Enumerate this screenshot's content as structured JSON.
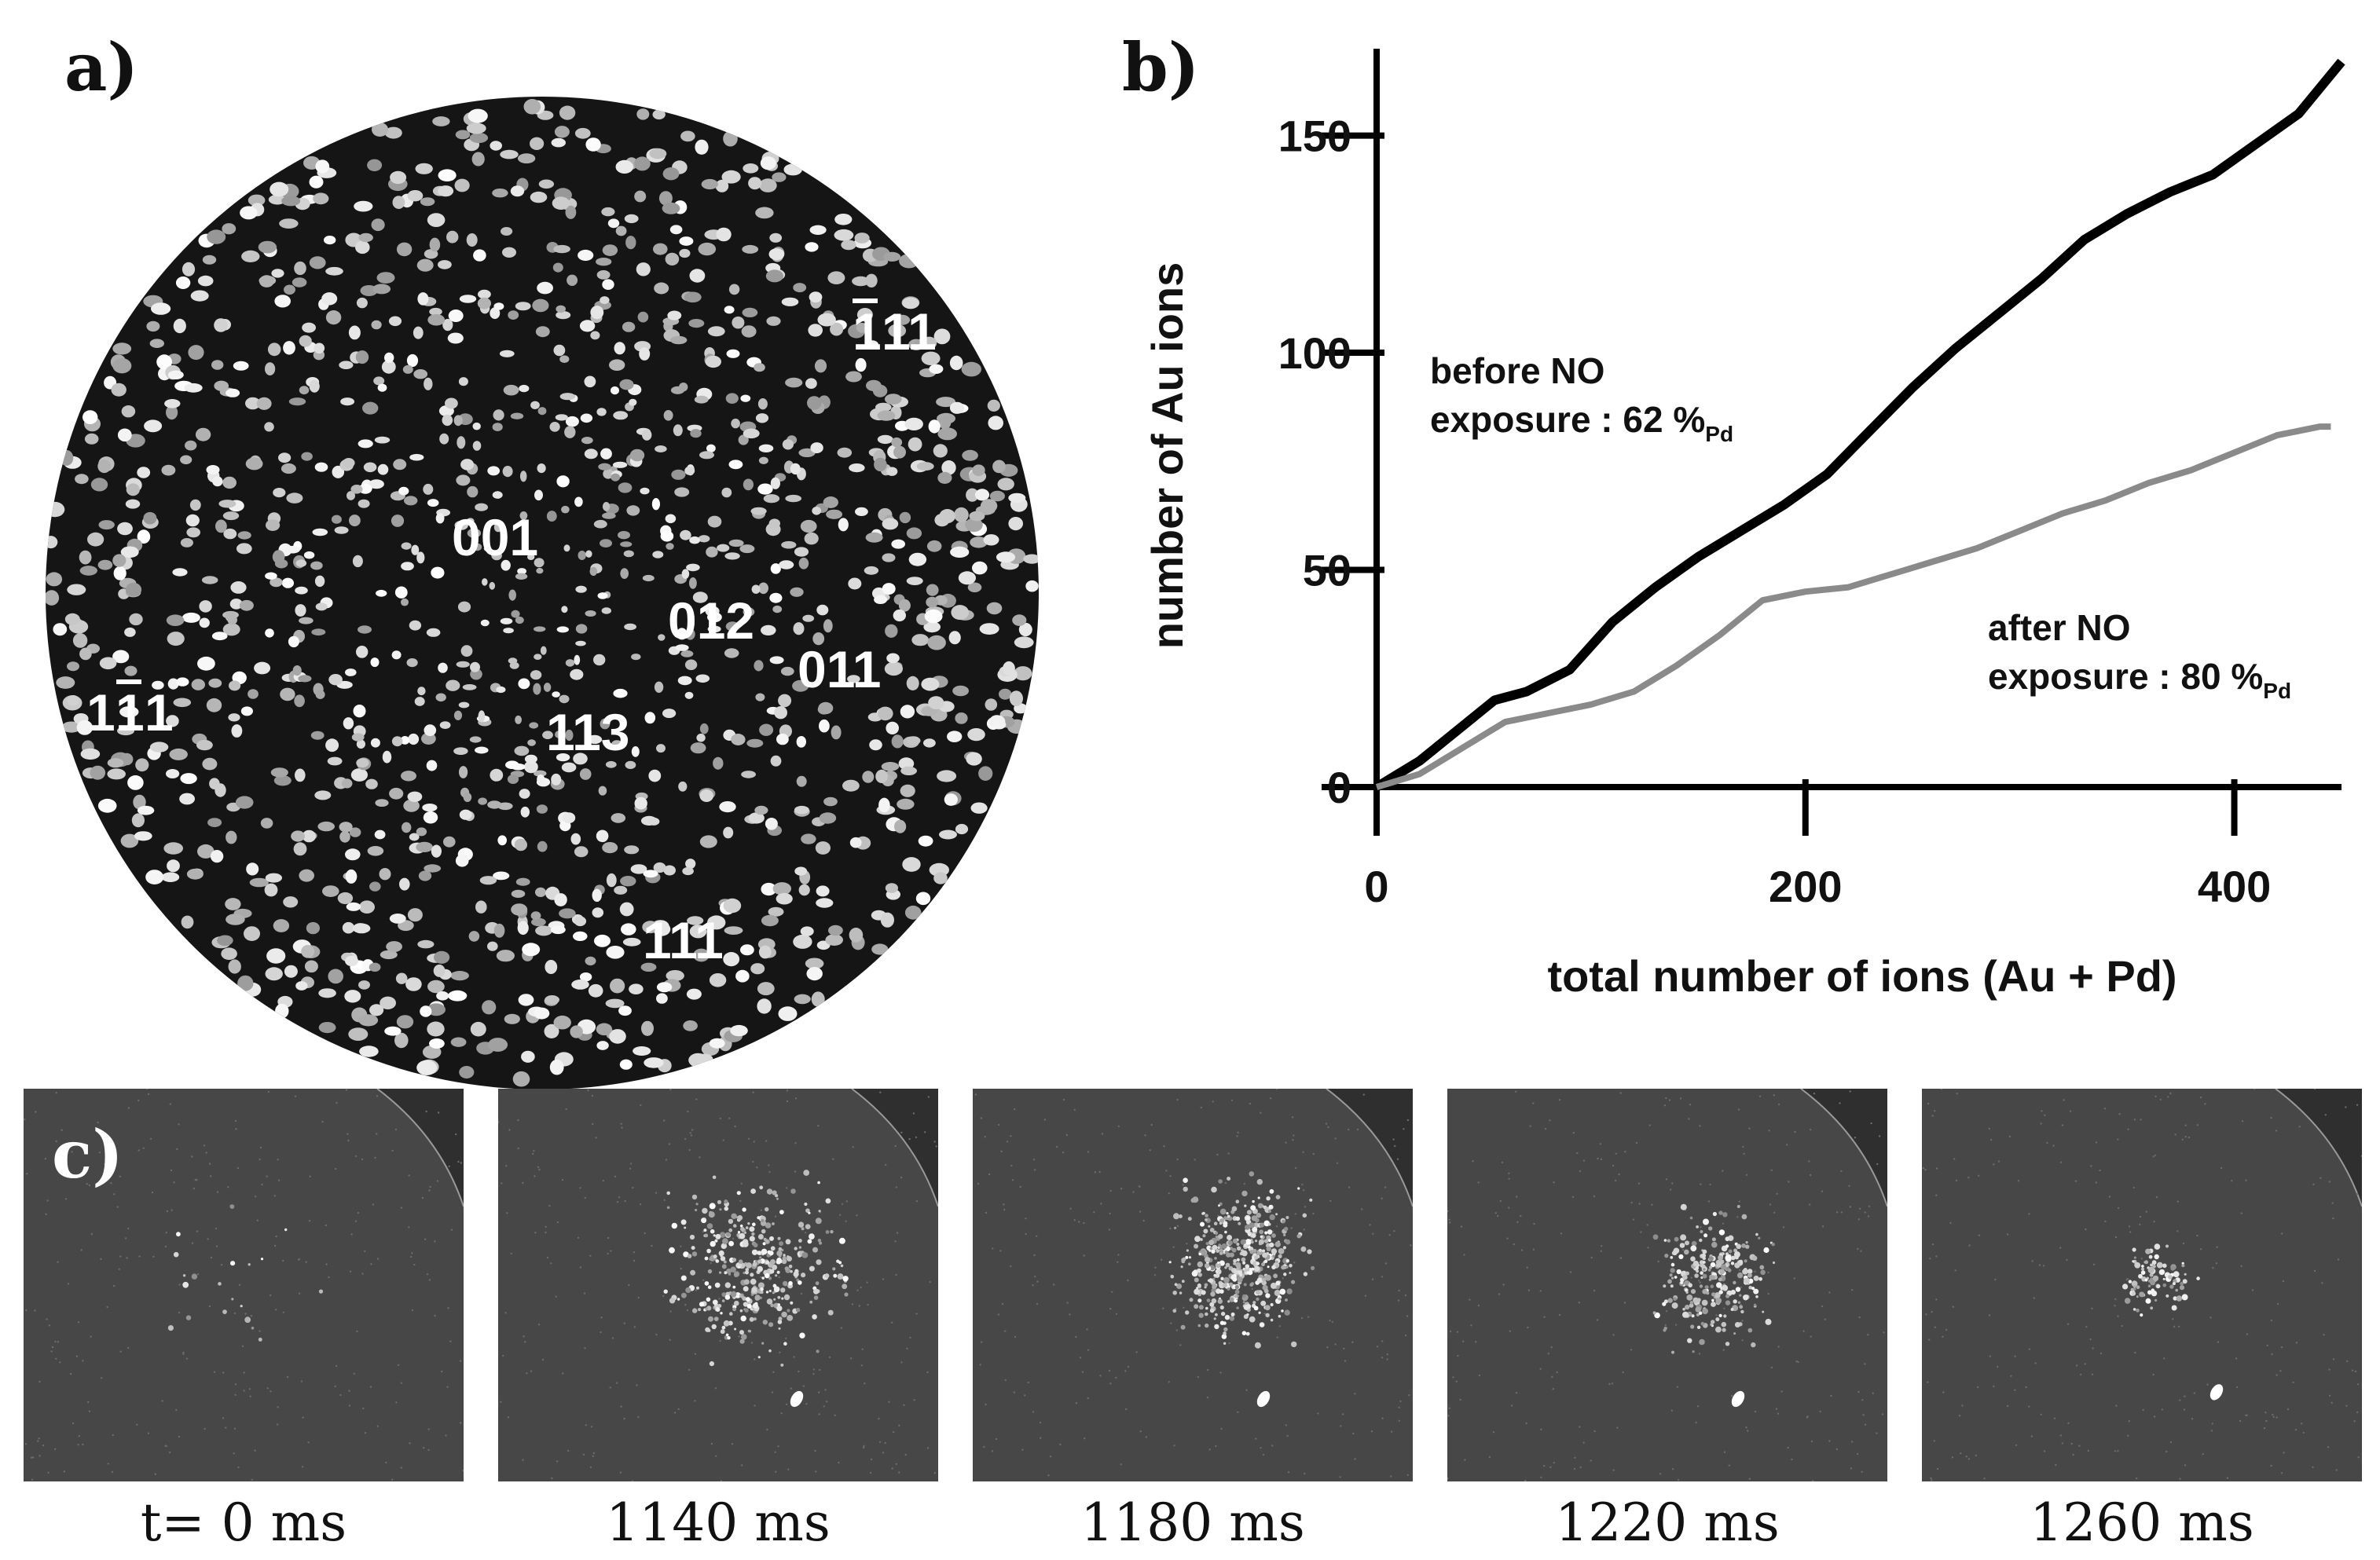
{
  "panels": {
    "a": {
      "label": "a)",
      "pole_labels": [
        "001",
        "012",
        "011",
        "113",
        "111",
        "1̄1̄1",
        "̄1̄11"
      ]
    },
    "b": {
      "label": "b)",
      "annotation_before": {
        "line1": "before NO",
        "line2": "exposure : 62 %",
        "sub": "Pd"
      },
      "annotation_after": {
        "line1": "after NO",
        "line2": "exposure : 80 %",
        "sub": "Pd"
      }
    },
    "c": {
      "label": "c)",
      "frames": [
        "t= 0 ms",
        "1140 ms",
        "1180 ms",
        "1220 ms",
        "1260 ms"
      ]
    }
  },
  "pole_text": {
    "p001": "001",
    "p012": "012",
    "p011": "011",
    "p113": "113",
    "p111": "111",
    "p1b11": "1",
    "p1b11_b": "1",
    "p1b11_c": "1",
    "pb111_a": "1",
    "pb111_b": "11"
  },
  "chart_data": {
    "type": "line",
    "title": "",
    "xlabel": "total number of ions (Au + Pd)",
    "ylabel": "number of Au ions",
    "xlim": [
      0,
      450
    ],
    "ylim": [
      0,
      170
    ],
    "xticks": [
      0,
      200,
      400
    ],
    "yticks": [
      0,
      50,
      100,
      150
    ],
    "grid": false,
    "series": [
      {
        "name": "before NO exposure : 62 %Pd",
        "color": "#000000",
        "x": [
          0,
          20,
          40,
          55,
          70,
          90,
          110,
          130,
          150,
          170,
          190,
          210,
          230,
          250,
          270,
          290,
          310,
          330,
          350,
          370,
          390,
          410,
          430,
          450
        ],
        "y": [
          0,
          6,
          14,
          20,
          22,
          27,
          38,
          46,
          53,
          59,
          65,
          72,
          82,
          92,
          101,
          109,
          117,
          126,
          132,
          137,
          141,
          148,
          155,
          167
        ]
      },
      {
        "name": "after NO exposure : 80 %Pd",
        "color": "#8a8a8a",
        "x": [
          0,
          20,
          40,
          60,
          80,
          100,
          120,
          140,
          160,
          180,
          200,
          220,
          240,
          260,
          280,
          300,
          320,
          340,
          360,
          380,
          400,
          420,
          440,
          445
        ],
        "y": [
          0,
          3,
          9,
          15,
          17,
          19,
          22,
          28,
          35,
          43,
          45,
          46,
          49,
          52,
          55,
          59,
          63,
          66,
          70,
          73,
          77,
          81,
          83,
          83
        ]
      }
    ]
  }
}
